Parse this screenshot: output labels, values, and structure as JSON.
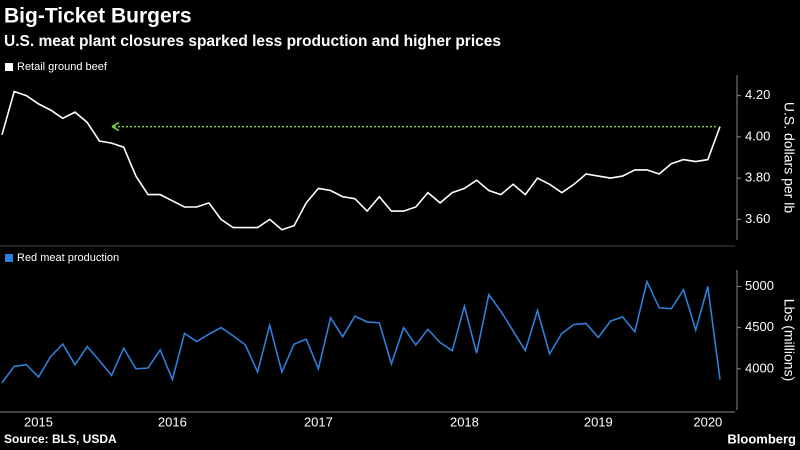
{
  "header": {
    "title": "Big-Ticket Burgers",
    "subtitle": "U.S. meat plant closures sparked less production and higher prices"
  },
  "footer": {
    "source": "Source: BLS, USDA",
    "brand": "Bloomberg"
  },
  "chart_data": [
    {
      "type": "line",
      "axis_title": "U.S. dollars per lb",
      "series": [
        {
          "name": "Retail ground beef",
          "color": "#ffffff",
          "values": [
            4.01,
            4.22,
            4.2,
            4.16,
            4.13,
            4.09,
            4.12,
            4.07,
            3.98,
            3.97,
            3.95,
            3.81,
            3.72,
            3.72,
            3.69,
            3.66,
            3.66,
            3.68,
            3.6,
            3.56,
            3.56,
            3.56,
            3.6,
            3.55,
            3.57,
            3.68,
            3.75,
            3.74,
            3.71,
            3.7,
            3.64,
            3.71,
            3.64,
            3.64,
            3.66,
            3.73,
            3.68,
            3.73,
            3.75,
            3.79,
            3.74,
            3.72,
            3.77,
            3.72,
            3.8,
            3.77,
            3.73,
            3.77,
            3.82,
            3.81,
            3.8,
            3.81,
            3.84,
            3.84,
            3.82,
            3.87,
            3.89,
            3.88,
            3.89,
            4.05
          ]
        }
      ],
      "arrow_color": "#7fd13b",
      "ylim": [
        3.5,
        4.3
      ],
      "yticks": [
        {
          "value": 3.6,
          "label": "3.60"
        },
        {
          "value": 3.8,
          "label": "3.80"
        },
        {
          "value": 4.0,
          "label": "4.00"
        },
        {
          "value": 4.2,
          "label": "4.20"
        }
      ]
    },
    {
      "type": "line",
      "axis_title": "Lbs (millions)",
      "categories": [
        null,
        null,
        null,
        "2015",
        null,
        null,
        null,
        null,
        null,
        null,
        null,
        null,
        null,
        null,
        "2016",
        null,
        null,
        null,
        null,
        null,
        null,
        null,
        null,
        null,
        null,
        null,
        "2017",
        null,
        null,
        null,
        null,
        null,
        null,
        null,
        null,
        null,
        null,
        null,
        "2018",
        null,
        null,
        null,
        null,
        null,
        null,
        null,
        null,
        null,
        null,
        "2019",
        null,
        null,
        null,
        null,
        null,
        null,
        null,
        null,
        "2020",
        null
      ],
      "series": [
        {
          "name": "Red meat production",
          "color": "#2f7ed8",
          "values": [
            3830,
            4030,
            4050,
            3900,
            4150,
            4300,
            4050,
            4270,
            4100,
            3920,
            4250,
            4000,
            4010,
            4230,
            3870,
            4430,
            4330,
            4420,
            4500,
            4400,
            4290,
            3960,
            4530,
            3960,
            4300,
            4360,
            4000,
            4620,
            4390,
            4640,
            4570,
            4560,
            4060,
            4500,
            4290,
            4480,
            4320,
            4220,
            4760,
            4190,
            4900,
            4700,
            4460,
            4220,
            4710,
            4180,
            4430,
            4540,
            4550,
            4380,
            4580,
            4630,
            4450,
            5060,
            4740,
            4730,
            4960,
            4470,
            5000,
            3870
          ]
        }
      ],
      "ylim": [
        3500,
        5200
      ],
      "yticks": [
        4000,
        4500,
        5000
      ]
    }
  ]
}
